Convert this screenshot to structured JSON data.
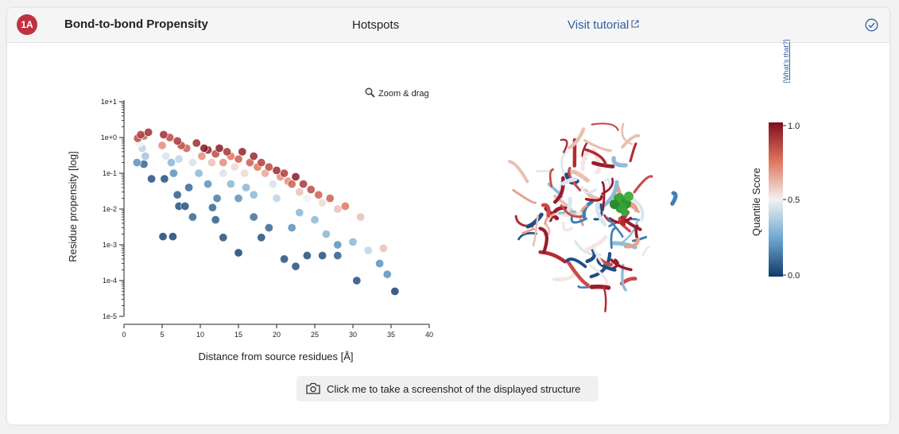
{
  "header": {
    "badge": "1A",
    "title": "Bond-to-bond Propensity",
    "tab_hotspots": "Hotspots",
    "tutorial_link": "Visit tutorial"
  },
  "toolbar": {
    "zoom_label": "Zoom & drag"
  },
  "colorbar": {
    "title": "Quantile Score",
    "whats_that": "[What's that?]",
    "tick_top": "1.0",
    "tick_mid": "0.5",
    "tick_bottom": "0.0"
  },
  "screenshot_button": {
    "label": "Click me to take a screenshot of the displayed structure"
  },
  "colors": {
    "accent": "#c0313f",
    "link": "#2f5f9e",
    "high": "#7f0d1f",
    "mid": "#f2f2f2",
    "low": "#123a6b"
  },
  "chart_data": {
    "type": "scatter",
    "xlabel": "Distance from source residues [Å]",
    "ylabel": "Residue propensity [log]",
    "xlim": [
      0,
      40
    ],
    "ylim_log10": [
      -5,
      1
    ],
    "y_scale": "log",
    "grid": false,
    "x_ticks": [
      "0",
      "5",
      "10",
      "15",
      "20",
      "25",
      "30",
      "35",
      "40"
    ],
    "y_ticks": [
      "1e-5",
      "1e-4",
      "1e-3",
      "1e-2",
      "1e-1",
      "1e+0",
      "1e+1"
    ],
    "points": [
      {
        "x": 1.8,
        "y": 0.95,
        "q": 0.85
      },
      {
        "x": 2.2,
        "y": 1.2,
        "q": 0.88
      },
      {
        "x": 2.6,
        "y": 1.1,
        "q": 0.8
      },
      {
        "x": 3.2,
        "y": 1.4,
        "q": 0.92
      },
      {
        "x": 2.0,
        "y": 0.7,
        "q": 0.5
      },
      {
        "x": 2.4,
        "y": 0.5,
        "q": 0.4
      },
      {
        "x": 2.8,
        "y": 0.3,
        "q": 0.35
      },
      {
        "x": 1.7,
        "y": 0.2,
        "q": 0.2
      },
      {
        "x": 2.6,
        "y": 0.18,
        "q": 0.1
      },
      {
        "x": 3.6,
        "y": 0.07,
        "q": 0.05
      },
      {
        "x": 5.2,
        "y": 1.2,
        "q": 0.92
      },
      {
        "x": 6.0,
        "y": 1.0,
        "q": 0.85
      },
      {
        "x": 5.0,
        "y": 0.6,
        "q": 0.7
      },
      {
        "x": 5.5,
        "y": 0.3,
        "q": 0.45
      },
      {
        "x": 6.2,
        "y": 0.2,
        "q": 0.3
      },
      {
        "x": 5.3,
        "y": 0.07,
        "q": 0.05
      },
      {
        "x": 6.5,
        "y": 0.1,
        "q": 0.2
      },
      {
        "x": 7.0,
        "y": 0.8,
        "q": 0.9
      },
      {
        "x": 7.2,
        "y": 0.25,
        "q": 0.4
      },
      {
        "x": 7.0,
        "y": 0.025,
        "q": 0.08
      },
      {
        "x": 7.2,
        "y": 0.012,
        "q": 0.05
      },
      {
        "x": 8.5,
        "y": 0.04,
        "q": 0.1
      },
      {
        "x": 8.0,
        "y": 0.012,
        "q": 0.05
      },
      {
        "x": 9.0,
        "y": 0.006,
        "q": 0.1
      },
      {
        "x": 7.5,
        "y": 0.6,
        "q": 0.85
      },
      {
        "x": 8.2,
        "y": 0.5,
        "q": 0.8
      },
      {
        "x": 9.5,
        "y": 0.7,
        "q": 0.92
      },
      {
        "x": 9.0,
        "y": 0.2,
        "q": 0.45
      },
      {
        "x": 9.8,
        "y": 0.1,
        "q": 0.3
      },
      {
        "x": 10.5,
        "y": 0.5,
        "q": 0.97
      },
      {
        "x": 10.2,
        "y": 0.3,
        "q": 0.7
      },
      {
        "x": 11.0,
        "y": 0.45,
        "q": 0.95
      },
      {
        "x": 11.5,
        "y": 0.2,
        "q": 0.6
      },
      {
        "x": 11.0,
        "y": 0.05,
        "q": 0.2
      },
      {
        "x": 12.0,
        "y": 0.35,
        "q": 0.85
      },
      {
        "x": 12.5,
        "y": 0.5,
        "q": 0.97
      },
      {
        "x": 12.2,
        "y": 0.02,
        "q": 0.15
      },
      {
        "x": 11.6,
        "y": 0.011,
        "q": 0.1
      },
      {
        "x": 13.0,
        "y": 0.2,
        "q": 0.7
      },
      {
        "x": 13.5,
        "y": 0.4,
        "q": 0.9
      },
      {
        "x": 13.0,
        "y": 0.1,
        "q": 0.45
      },
      {
        "x": 14.0,
        "y": 0.3,
        "q": 0.75
      },
      {
        "x": 14.5,
        "y": 0.15,
        "q": 0.55
      },
      {
        "x": 14.0,
        "y": 0.05,
        "q": 0.3
      },
      {
        "x": 15.0,
        "y": 0.25,
        "q": 0.8
      },
      {
        "x": 15.5,
        "y": 0.4,
        "q": 0.95
      },
      {
        "x": 15.0,
        "y": 0.02,
        "q": 0.2
      },
      {
        "x": 15.8,
        "y": 0.1,
        "q": 0.55
      },
      {
        "x": 16.5,
        "y": 0.2,
        "q": 0.8
      },
      {
        "x": 16.0,
        "y": 0.04,
        "q": 0.3
      },
      {
        "x": 17.0,
        "y": 0.3,
        "q": 0.93
      },
      {
        "x": 17.5,
        "y": 0.15,
        "q": 0.75
      },
      {
        "x": 17.0,
        "y": 0.025,
        "q": 0.3
      },
      {
        "x": 18.0,
        "y": 0.2,
        "q": 0.88
      },
      {
        "x": 18.5,
        "y": 0.1,
        "q": 0.65
      },
      {
        "x": 19.0,
        "y": 0.15,
        "q": 0.85
      },
      {
        "x": 19.5,
        "y": 0.05,
        "q": 0.45
      },
      {
        "x": 20.0,
        "y": 0.12,
        "q": 0.93
      },
      {
        "x": 20.5,
        "y": 0.08,
        "q": 0.7
      },
      {
        "x": 20.0,
        "y": 0.02,
        "q": 0.4
      },
      {
        "x": 21.0,
        "y": 0.1,
        "q": 0.88
      },
      {
        "x": 21.5,
        "y": 0.06,
        "q": 0.7
      },
      {
        "x": 22.0,
        "y": 0.05,
        "q": 0.8
      },
      {
        "x": 22.5,
        "y": 0.08,
        "q": 0.97
      },
      {
        "x": 23.0,
        "y": 0.03,
        "q": 0.6
      },
      {
        "x": 23.5,
        "y": 0.05,
        "q": 0.9
      },
      {
        "x": 24.0,
        "y": 0.02,
        "q": 0.5
      },
      {
        "x": 24.5,
        "y": 0.035,
        "q": 0.85
      },
      {
        "x": 25.5,
        "y": 0.025,
        "q": 0.8
      },
      {
        "x": 26.0,
        "y": 0.015,
        "q": 0.55
      },
      {
        "x": 27.0,
        "y": 0.02,
        "q": 0.8
      },
      {
        "x": 28.0,
        "y": 0.01,
        "q": 0.6
      },
      {
        "x": 29.0,
        "y": 0.012,
        "q": 0.75
      },
      {
        "x": 31.0,
        "y": 0.006,
        "q": 0.6
      },
      {
        "x": 22.0,
        "y": 0.003,
        "q": 0.2
      },
      {
        "x": 23.0,
        "y": 0.008,
        "q": 0.3
      },
      {
        "x": 24.0,
        "y": 0.0005,
        "q": 0.05
      },
      {
        "x": 26.5,
        "y": 0.002,
        "q": 0.3
      },
      {
        "x": 28.0,
        "y": 0.001,
        "q": 0.2
      },
      {
        "x": 30.0,
        "y": 0.0012,
        "q": 0.3
      },
      {
        "x": 32.0,
        "y": 0.0007,
        "q": 0.4
      },
      {
        "x": 34.0,
        "y": 0.0008,
        "q": 0.6
      },
      {
        "x": 33.5,
        "y": 0.0003,
        "q": 0.2
      },
      {
        "x": 30.5,
        "y": 0.0001,
        "q": 0.05
      },
      {
        "x": 34.5,
        "y": 0.00015,
        "q": 0.2
      },
      {
        "x": 35.5,
        "y": 5e-05,
        "q": 0.02
      },
      {
        "x": 5.1,
        "y": 0.0017,
        "q": 0.03
      },
      {
        "x": 6.4,
        "y": 0.0017,
        "q": 0.03
      },
      {
        "x": 13.0,
        "y": 0.0016,
        "q": 0.05
      },
      {
        "x": 15.0,
        "y": 0.0006,
        "q": 0.02
      },
      {
        "x": 18.0,
        "y": 0.0016,
        "q": 0.05
      },
      {
        "x": 21.0,
        "y": 0.0004,
        "q": 0.05
      },
      {
        "x": 22.5,
        "y": 0.00025,
        "q": 0.05
      },
      {
        "x": 26.0,
        "y": 0.0005,
        "q": 0.05
      },
      {
        "x": 28.0,
        "y": 0.0005,
        "q": 0.08
      },
      {
        "x": 19.0,
        "y": 0.003,
        "q": 0.1
      },
      {
        "x": 17.0,
        "y": 0.006,
        "q": 0.12
      },
      {
        "x": 12.0,
        "y": 0.005,
        "q": 0.08
      },
      {
        "x": 25.0,
        "y": 0.005,
        "q": 0.3
      }
    ]
  }
}
